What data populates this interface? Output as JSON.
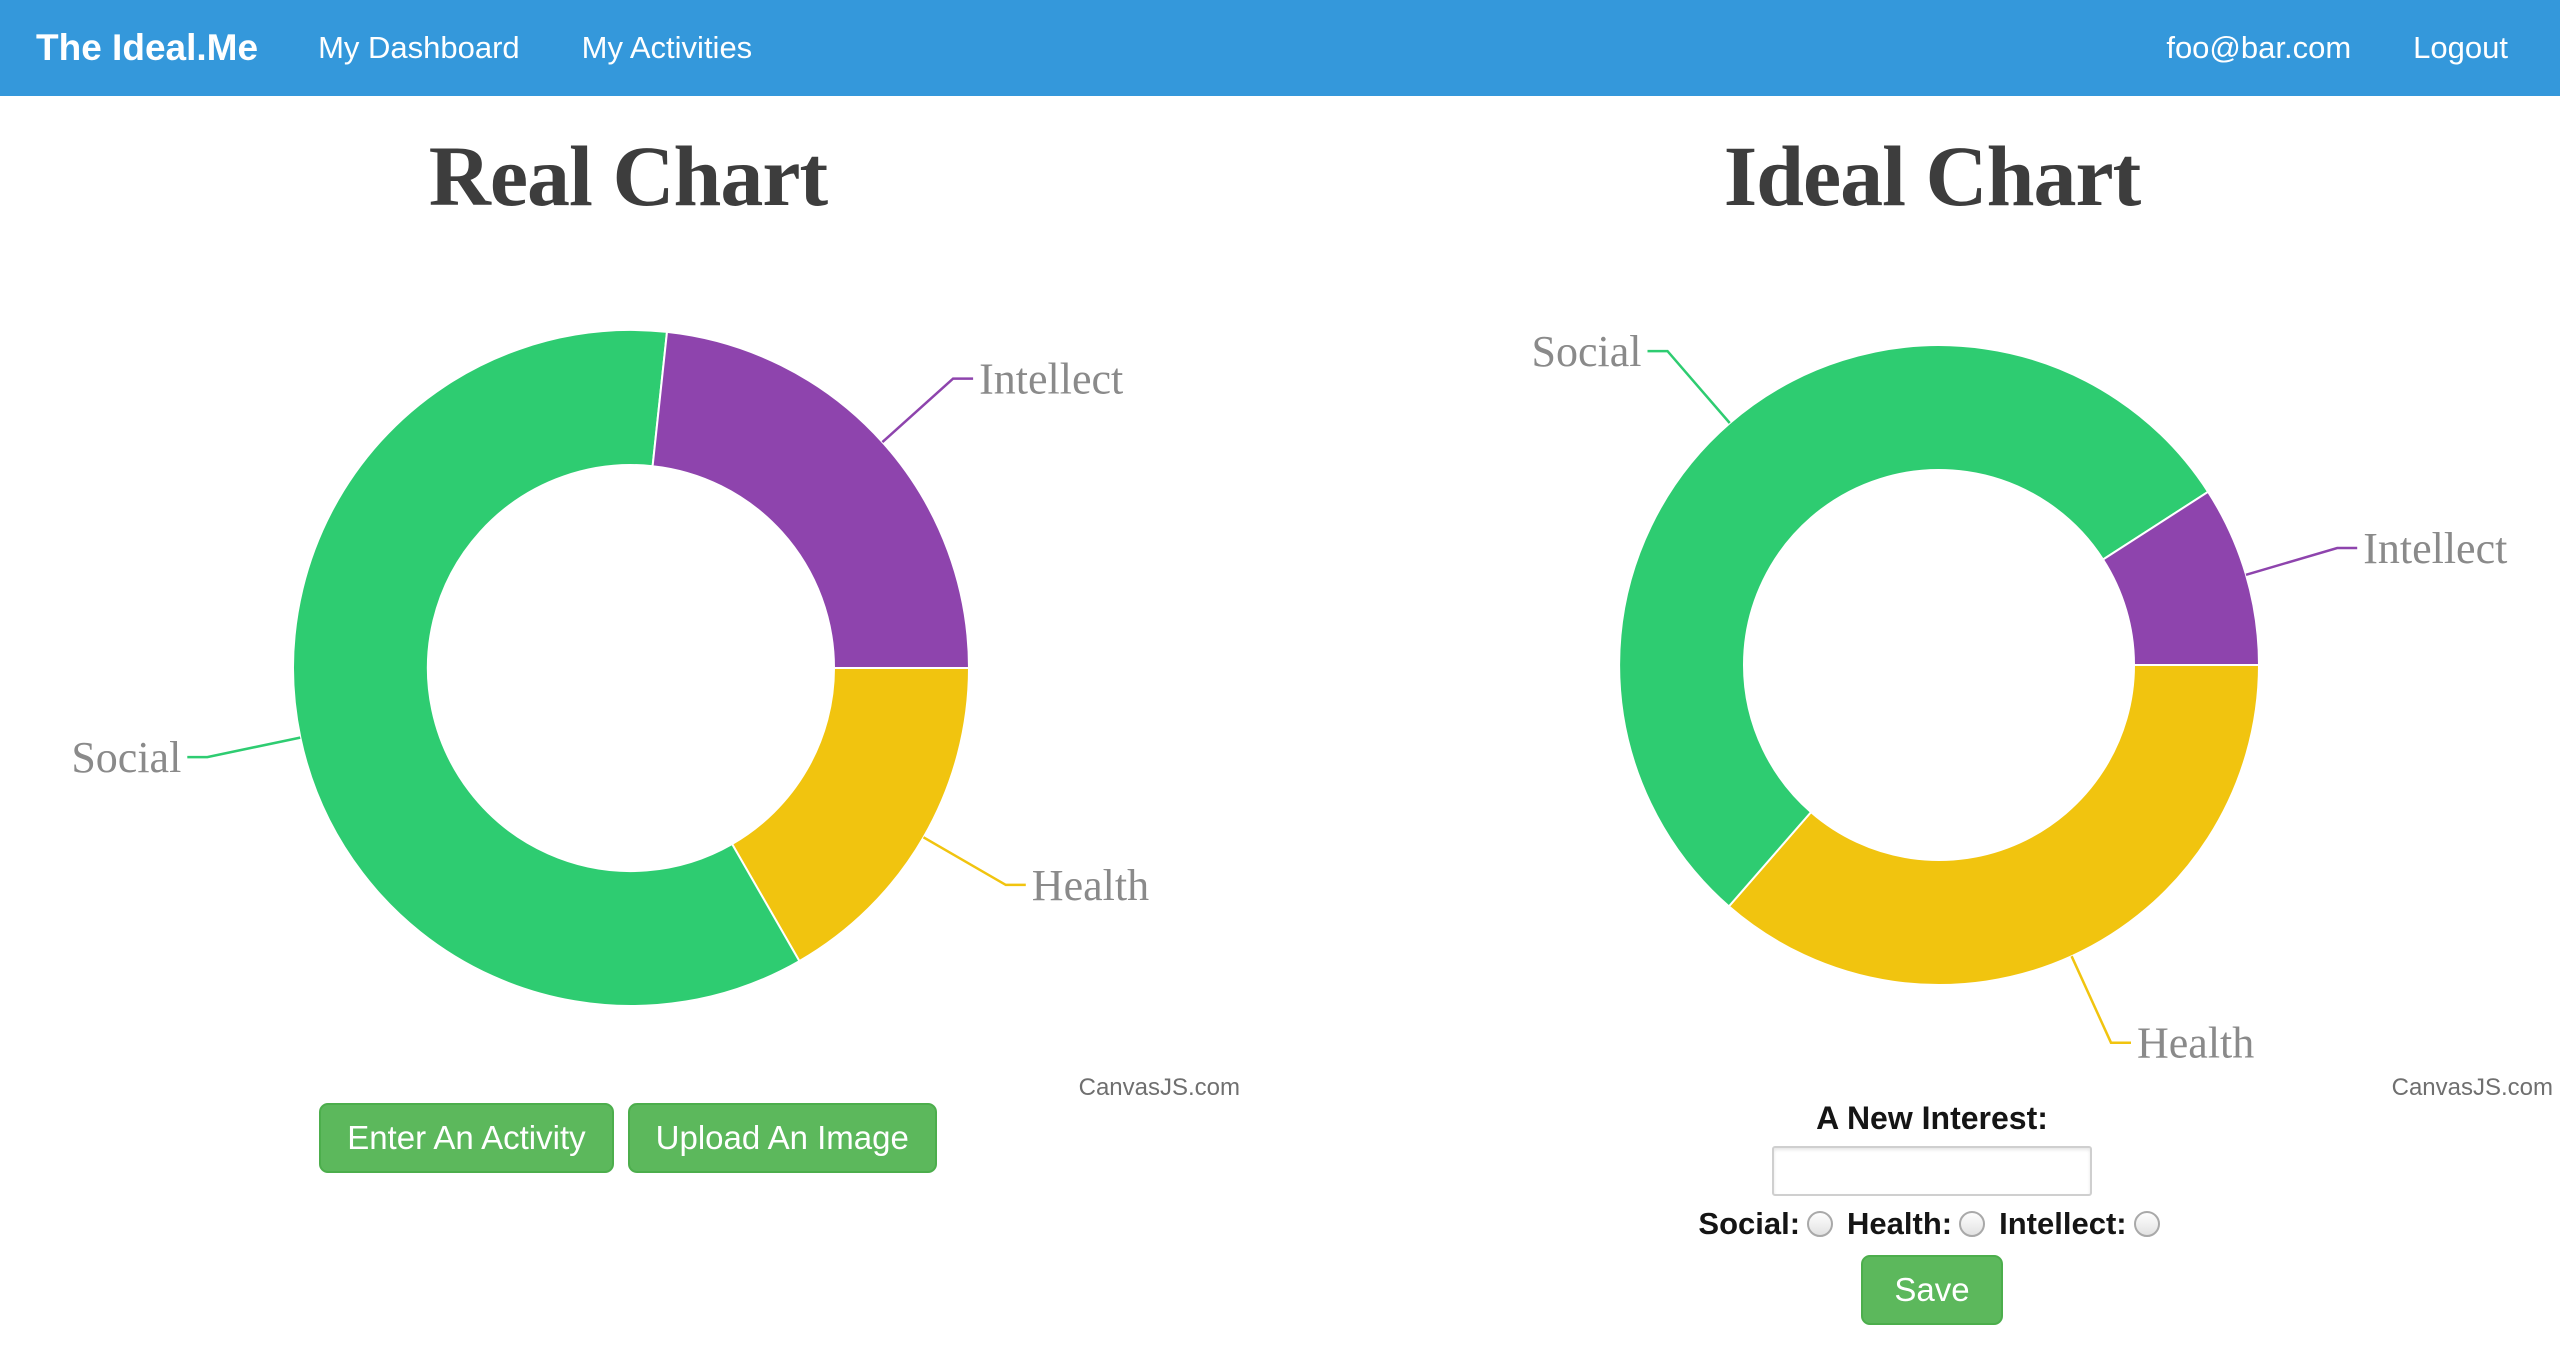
{
  "navbar": {
    "brand": "The Ideal.Me",
    "links": [
      {
        "label": "My Dashboard"
      },
      {
        "label": "My Activities"
      }
    ],
    "right": [
      {
        "label": "foo@bar.com"
      },
      {
        "label": "Logout"
      }
    ]
  },
  "colors": {
    "navbar_blue": "#3498db",
    "social_green": "#2ecc71",
    "health_yellow": "#f1c40f",
    "intellect_purple": "#8e44ad",
    "button_green": "#5cb85c",
    "button_border": "#4cae4c",
    "label_gray": "#8a8a8a",
    "title_gray": "#3d3d3d"
  },
  "chart_data": [
    {
      "type": "pie",
      "subtype": "doughnut",
      "title": "Real Chart",
      "credit": "CanvasJS.com",
      "legend_position": "outside-labels",
      "start_angle_deg_from_east": 0,
      "slices": [
        {
          "label": "Health",
          "percent": 16.7,
          "color": "#f1c40f"
        },
        {
          "label": "Social",
          "percent": 60.0,
          "color": "#2ecc71"
        },
        {
          "label": "Intellect",
          "percent": 23.3,
          "color": "#8e44ad"
        }
      ]
    },
    {
      "type": "pie",
      "subtype": "doughnut",
      "title": "Ideal Chart",
      "credit": "CanvasJS.com",
      "legend_position": "outside-labels",
      "start_angle_deg_from_east": 0,
      "slices": [
        {
          "label": "Health",
          "percent": 36.4,
          "color": "#f1c40f"
        },
        {
          "label": "Social",
          "percent": 54.5,
          "color": "#2ecc71"
        },
        {
          "label": "Intellect",
          "percent": 9.1,
          "color": "#8e44ad"
        }
      ]
    }
  ],
  "real_section": {
    "buttons": [
      {
        "label": "Enter An Activity"
      },
      {
        "label": "Upload An Image"
      }
    ]
  },
  "ideal_section": {
    "form": {
      "label": "A New Interest:",
      "input_value": "",
      "radios": [
        {
          "label": "Social:"
        },
        {
          "label": "Health:"
        },
        {
          "label": "Intellect:"
        }
      ],
      "save_label": "Save"
    }
  }
}
